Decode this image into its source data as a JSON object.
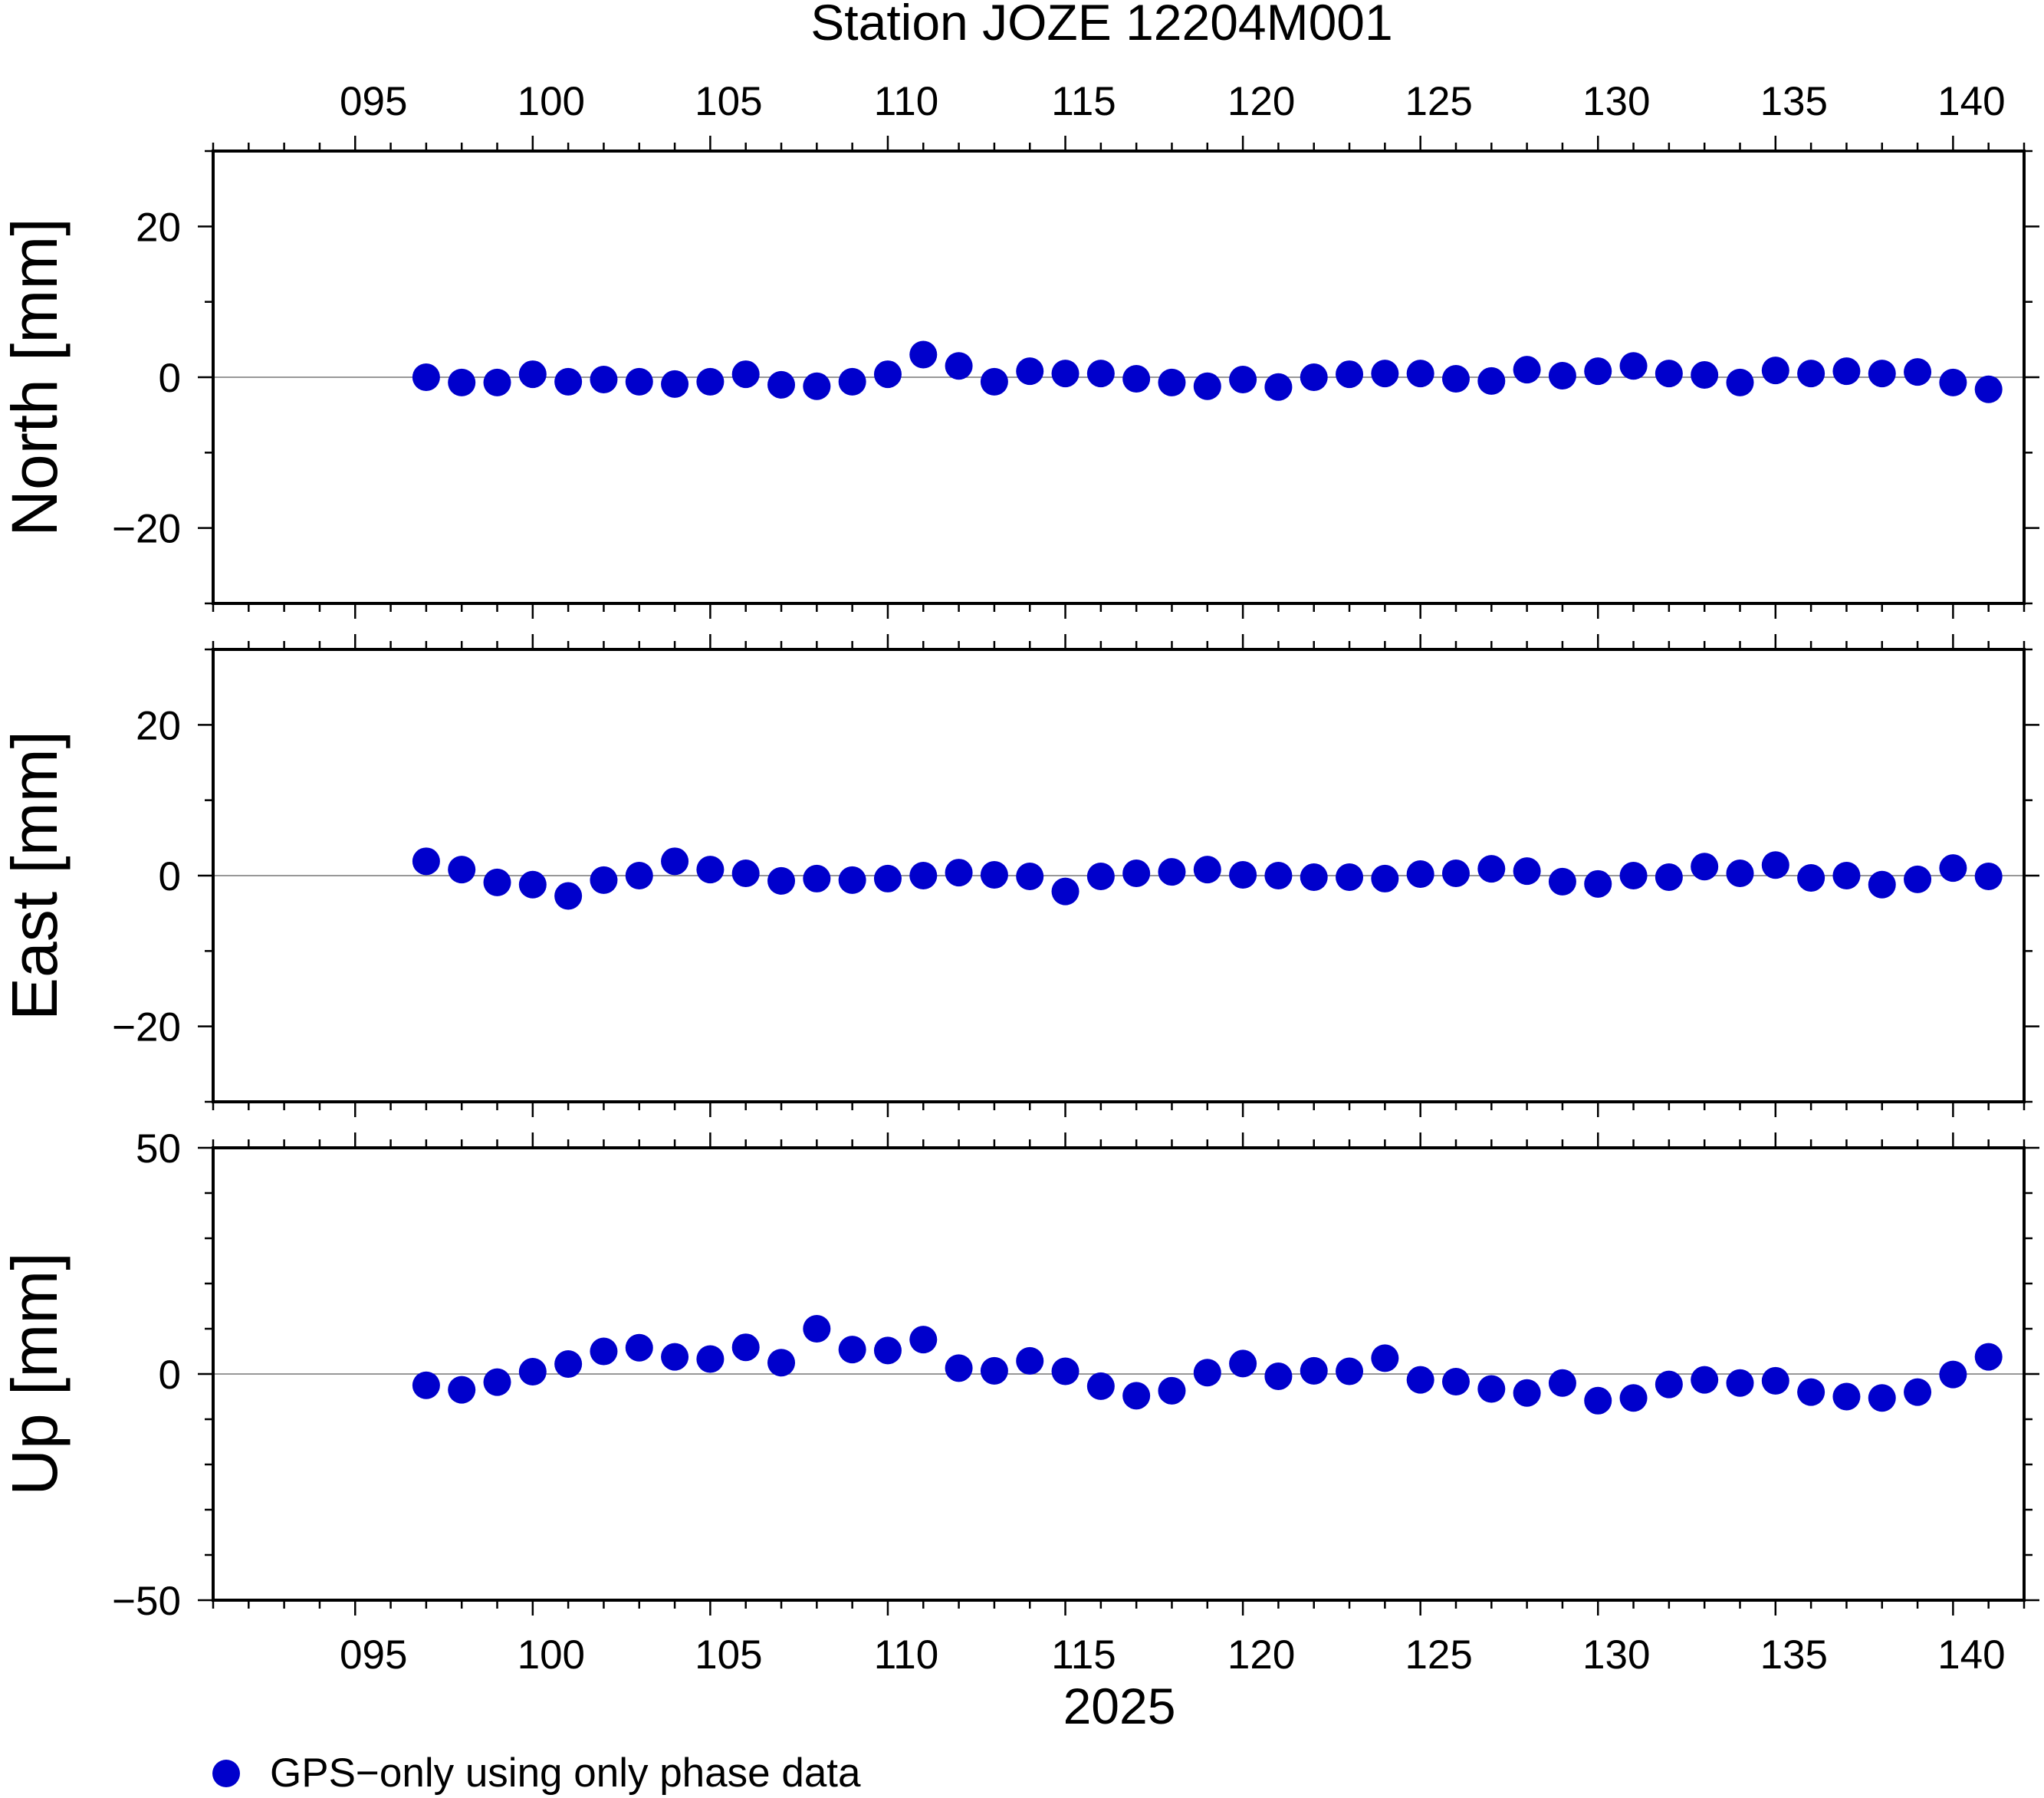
{
  "title": "Station JOZE 12204M001",
  "xlabel": "2025",
  "legend": {
    "label": "GPS−only using only phase data",
    "color": "#0000cc"
  },
  "chart_data": [
    {
      "type": "scatter",
      "ylabel": "North [mm]",
      "xlim": [
        91,
        142
      ],
      "ylim": [
        -30,
        30
      ],
      "yticks": [
        20,
        0,
        -20
      ],
      "ytick_labels": [
        "20",
        "0",
        "−20"
      ],
      "x": [
        97,
        98,
        99,
        100,
        101,
        102,
        103,
        104,
        105,
        106,
        107,
        108,
        109,
        110,
        111,
        112,
        113,
        114,
        115,
        116,
        117,
        118,
        119,
        120,
        121,
        122,
        123,
        124,
        125,
        126,
        127,
        128,
        129,
        130,
        131,
        132,
        133,
        134,
        135,
        136,
        137,
        138,
        139,
        140,
        141
      ],
      "y": [
        0.0,
        -0.7,
        -0.7,
        0.4,
        -0.6,
        -0.3,
        -0.6,
        -0.9,
        -0.6,
        0.4,
        -1.0,
        -1.2,
        -0.6,
        0.4,
        3.0,
        1.5,
        -0.6,
        0.8,
        0.5,
        0.5,
        -0.2,
        -0.7,
        -1.2,
        -0.3,
        -1.3,
        0.0,
        0.4,
        0.5,
        0.5,
        -0.2,
        -0.5,
        1.0,
        0.2,
        0.8,
        1.5,
        0.5,
        0.3,
        -0.7,
        0.9,
        0.5,
        0.8,
        0.5,
        0.7,
        -0.7,
        -1.6
      ]
    },
    {
      "type": "scatter",
      "ylabel": "East [mm]",
      "xlim": [
        91,
        142
      ],
      "ylim": [
        -30,
        30
      ],
      "yticks": [
        20,
        0,
        -20
      ],
      "ytick_labels": [
        "20",
        "0",
        "−20"
      ],
      "x": [
        97,
        98,
        99,
        100,
        101,
        102,
        103,
        104,
        105,
        106,
        107,
        108,
        109,
        110,
        111,
        112,
        113,
        114,
        115,
        116,
        117,
        118,
        119,
        120,
        121,
        122,
        123,
        124,
        125,
        126,
        127,
        128,
        129,
        130,
        131,
        132,
        133,
        134,
        135,
        136,
        137,
        138,
        139,
        140,
        141
      ],
      "y": [
        1.9,
        0.8,
        -0.9,
        -1.2,
        -2.7,
        -0.6,
        0.0,
        1.9,
        0.8,
        0.3,
        -0.7,
        -0.4,
        -0.6,
        -0.4,
        0.0,
        0.4,
        0.1,
        -0.1,
        -2.1,
        -0.1,
        0.3,
        0.5,
        0.8,
        0.1,
        0.0,
        -0.2,
        -0.2,
        -0.4,
        0.2,
        0.3,
        0.9,
        0.6,
        -0.8,
        -1.1,
        0.0,
        -0.2,
        1.2,
        0.3,
        1.4,
        -0.3,
        0.0,
        -1.2,
        -0.5,
        1.0,
        -0.1
      ]
    },
    {
      "type": "scatter",
      "ylabel": "Up [mm]",
      "xlim": [
        91,
        142
      ],
      "ylim": [
        -50,
        50
      ],
      "yticks": [
        50,
        0,
        -50
      ],
      "ytick_labels": [
        "50",
        "0",
        "−50"
      ],
      "x": [
        97,
        98,
        99,
        100,
        101,
        102,
        103,
        104,
        105,
        106,
        107,
        108,
        109,
        110,
        111,
        112,
        113,
        114,
        115,
        116,
        117,
        118,
        119,
        120,
        121,
        122,
        123,
        124,
        125,
        126,
        127,
        128,
        129,
        130,
        131,
        132,
        133,
        134,
        135,
        136,
        137,
        138,
        139,
        140,
        141
      ],
      "y": [
        -2.5,
        -3.5,
        -1.8,
        0.5,
        2.2,
        5.0,
        5.8,
        3.8,
        3.3,
        5.9,
        2.5,
        10.0,
        5.4,
        5.2,
        7.6,
        1.3,
        0.7,
        2.9,
        0.6,
        -2.7,
        -4.8,
        -3.7,
        0.3,
        2.3,
        -0.5,
        0.7,
        0.6,
        3.5,
        -1.3,
        -1.7,
        -3.3,
        -4.2,
        -2.0,
        -5.9,
        -5.3,
        -2.3,
        -1.3,
        -2.0,
        -1.5,
        -4.0,
        -5.0,
        -5.3,
        -4.0,
        -0.1,
        3.8
      ]
    }
  ],
  "x_axis": {
    "ticks": [
      95,
      100,
      105,
      110,
      115,
      120,
      125,
      130,
      135,
      140
    ],
    "tick_labels": [
      "095",
      "100",
      "105",
      "110",
      "115",
      "120",
      "125",
      "130",
      "135",
      "140"
    ]
  }
}
